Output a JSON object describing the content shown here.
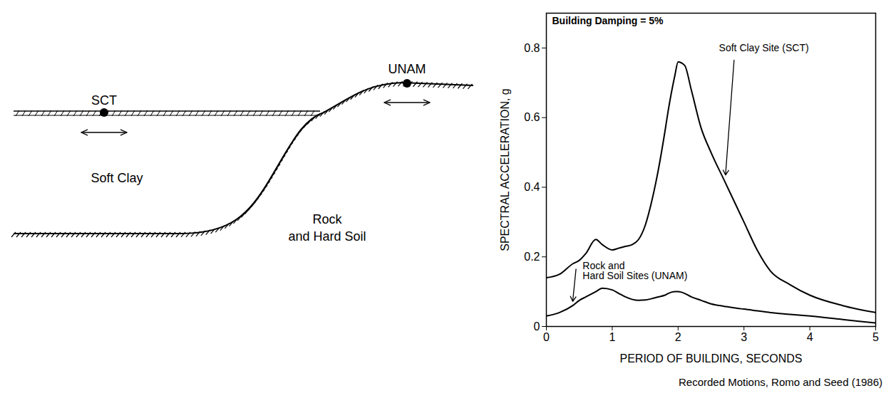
{
  "chart_data": {
    "type": "line",
    "annotation": "Building Damping = 5%",
    "xlabel": "PERIOD OF BUILDING, SECONDS",
    "ylabel": "SPECTRAL ACCELERATION, g",
    "caption": "Recorded Motions, Romo and Seed (1986)",
    "x": [
      0,
      0.2,
      0.4,
      0.5,
      0.6,
      0.75,
      0.85,
      1.0,
      1.1,
      1.2,
      1.3,
      1.4,
      1.5,
      1.6,
      1.7,
      1.8,
      1.85,
      1.95,
      2.0,
      2.1,
      2.2,
      2.35,
      2.5,
      2.7,
      2.9,
      3.0,
      3.2,
      3.4,
      3.7,
      4.0,
      4.5,
      5.0
    ],
    "series": [
      {
        "name": "Soft Clay Site (SCT)",
        "color": "#000000",
        "line_style": "solid",
        "values": [
          0.14,
          0.15,
          0.18,
          0.19,
          0.21,
          0.25,
          0.235,
          0.22,
          0.225,
          0.23,
          0.235,
          0.25,
          0.29,
          0.36,
          0.45,
          0.56,
          0.62,
          0.72,
          0.76,
          0.75,
          0.68,
          0.57,
          0.5,
          0.42,
          0.34,
          0.3,
          0.22,
          0.16,
          0.12,
          0.09,
          0.06,
          0.04
        ]
      },
      {
        "name": "Rock and Hard Soil Sites (UNAM)",
        "color": "#000000",
        "line_style": "solid",
        "values": [
          0.03,
          0.04,
          0.06,
          0.075,
          0.085,
          0.1,
          0.11,
          0.105,
          0.095,
          0.085,
          0.078,
          0.075,
          0.076,
          0.08,
          0.085,
          0.09,
          0.095,
          0.1,
          0.1,
          0.095,
          0.085,
          0.075,
          0.065,
          0.058,
          0.052,
          0.05,
          0.045,
          0.04,
          0.035,
          0.03,
          0.02,
          0.01
        ]
      }
    ],
    "xlim": [
      0,
      5
    ],
    "xticks": [
      0,
      1,
      2,
      3,
      4,
      5
    ],
    "ylim": [
      0,
      0.9
    ],
    "yticks": [
      0,
      0.2,
      0.4,
      0.6,
      0.8
    ],
    "grid": false
  },
  "diagram": {
    "stations": [
      "SCT",
      "UNAM"
    ],
    "soil_label": "Soft Clay",
    "rock_label": "Rock and Hard Soil"
  }
}
